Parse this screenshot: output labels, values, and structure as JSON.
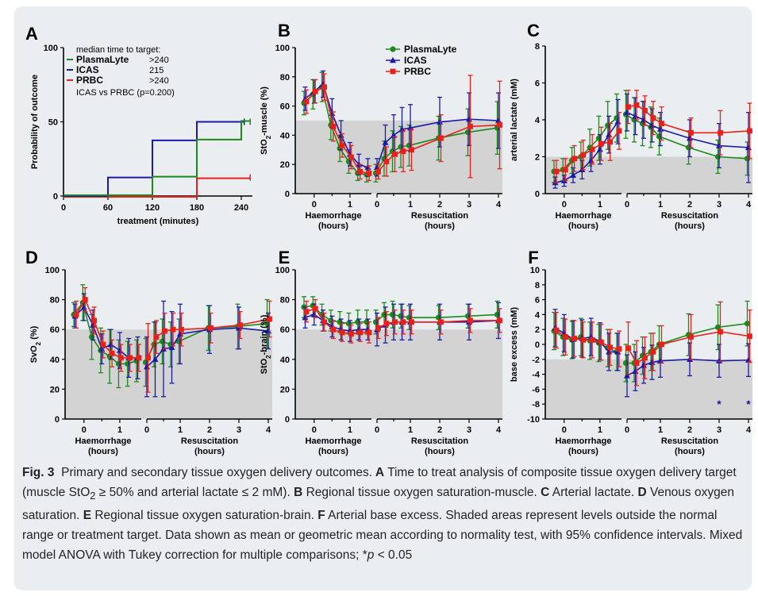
{
  "colors": {
    "PlasmaLyte": "#1a8a1a",
    "ICAS": "#1a1aaa",
    "PRBC": "#e8201c",
    "shade": "#d3d3d3"
  },
  "caption": {
    "fig_label": "Fig. 3",
    "title": "Primary and secondary tissue oxygen delivery outcomes.",
    "segments": [
      {
        "b": "A",
        "t": " Time to treat analysis of composite tissue oxygen delivery target (muscle StO"
      },
      {
        "sub": "2"
      },
      {
        "t": " ≥ 50% and arterial lactate ≤ 2 mM). "
      },
      {
        "b": "B",
        "t": " Regional tissue oxygen saturation-muscle. "
      },
      {
        "b": "C",
        "t": " Arterial lactate. "
      },
      {
        "b": "D",
        "t": " Venous oxygen saturation. "
      },
      {
        "b": "E",
        "t": " Regional tissue oxygen saturation-brain. "
      },
      {
        "b": "F",
        "t": " Arterial base excess. Shaded areas represent levels outside the normal range or treatment target. Data shown as mean or geometric mean according to normality test, with 95% confidence intervals. Mixed model ANOVA with Tukey correction for multiple comparisons; *"
      },
      {
        "i": "p"
      },
      {
        "t": " < 0.05"
      }
    ]
  },
  "chart_data": [
    {
      "panel": "A",
      "type": "line",
      "step": true,
      "xlabel": "treatment (minutes)",
      "ylabel": "Probability of outcome",
      "xlim": [
        0,
        255
      ],
      "ylim": [
        0,
        100
      ],
      "xticks": [
        0,
        60,
        120,
        180,
        240
      ],
      "yticks": [
        0,
        50,
        100
      ],
      "legend_title": "median time to target:",
      "legend_placement": "top-left",
      "series": [
        {
          "name": "PlasmaLyte",
          "median": ">240",
          "steps": [
            [
              0,
              0
            ],
            [
              120,
              0
            ],
            [
              120,
              12.5
            ],
            [
              180,
              12.5
            ],
            [
              180,
              37.5
            ],
            [
              240,
              37.5
            ],
            [
              240,
              50
            ],
            [
              252,
              50
            ]
          ]
        },
        {
          "name": "ICAS",
          "median": "215",
          "steps": [
            [
              0,
              0
            ],
            [
              60,
              0
            ],
            [
              60,
              12.5
            ],
            [
              120,
              12.5
            ],
            [
              120,
              37.5
            ],
            [
              180,
              37.5
            ],
            [
              180,
              50
            ],
            [
              244,
              50
            ]
          ]
        },
        {
          "name": "PRBC",
          "median": ">240",
          "steps": [
            [
              0,
              0
            ],
            [
              120,
              0
            ],
            [
              120,
              0
            ],
            [
              180,
              0
            ],
            [
              180,
              12.5
            ],
            [
              252,
              12.5
            ]
          ]
        }
      ],
      "note": "ICAS vs PRBC (p=0.200)"
    },
    {
      "panel": "B",
      "type": "line",
      "ylabel": "StO2-muscle (%)",
      "ylim": [
        0,
        100
      ],
      "yticks": [
        0,
        20,
        40,
        60,
        80,
        100
      ],
      "shade_below": 50,
      "legend_placement": "top",
      "haem_x": [
        -0.25,
        0,
        0.25,
        0.5,
        0.75,
        1,
        1.25,
        1.5
      ],
      "resus_x": [
        0,
        0.25,
        0.5,
        0.75,
        1,
        2,
        3,
        4
      ],
      "series": [
        {
          "name": "PlasmaLyte",
          "haem": [
            62,
            68,
            73,
            47,
            31,
            22,
            14,
            13
          ],
          "resus": [
            14,
            24,
            29,
            32,
            33,
            38,
            42,
            45
          ],
          "ci_haem": [
            8,
            10,
            10,
            10,
            9,
            8,
            5,
            5
          ],
          "ci_resus": [
            6,
            12,
            14,
            14,
            14,
            15,
            16,
            18
          ]
        },
        {
          "name": "ICAS",
          "haem": [
            65,
            70,
            75,
            55,
            40,
            27,
            20,
            18
          ],
          "resus": [
            18,
            35,
            40,
            44,
            45,
            49,
            51,
            50
          ],
          "ci_haem": [
            8,
            8,
            9,
            10,
            10,
            8,
            7,
            6
          ],
          "ci_resus": [
            6,
            12,
            14,
            15,
            16,
            17,
            18,
            19
          ]
        },
        {
          "name": "PRBC",
          "haem": [
            63,
            70,
            73,
            46,
            33,
            25,
            15,
            14
          ],
          "resus": [
            15,
            22,
            27,
            29,
            30,
            38,
            46,
            47
          ],
          "ci_haem": [
            8,
            8,
            9,
            10,
            8,
            8,
            5,
            5
          ],
          "ci_resus": [
            5,
            10,
            12,
            14,
            14,
            16,
            35,
            30
          ]
        }
      ],
      "xaxis_groups": [
        {
          "label": "Haemorrhage",
          "sub": "(hours)",
          "ticks": [
            "0",
            "1"
          ]
        },
        {
          "label": "Resuscitation",
          "sub": "(hours)",
          "ticks": [
            "0",
            "1",
            "2",
            "3",
            "4"
          ]
        }
      ]
    },
    {
      "panel": "C",
      "type": "line",
      "ylabel": "arterial lactate (mM)",
      "ylim": [
        0,
        8
      ],
      "yticks": [
        0,
        2,
        4,
        6,
        8
      ],
      "shade_below": 2,
      "haem_x": [
        -0.25,
        0,
        0.25,
        0.5,
        0.75,
        1,
        1.25,
        1.5
      ],
      "resus_x": [
        0,
        0.25,
        0.5,
        0.75,
        1,
        2,
        3,
        4
      ],
      "series": [
        {
          "name": "PlasmaLyte",
          "haem": [
            1.2,
            1.3,
            1.8,
            2.0,
            2.5,
            3.0,
            3.7,
            4.1
          ],
          "resus": [
            4.3,
            4.0,
            3.8,
            3.6,
            3.1,
            2.5,
            2.0,
            1.9
          ],
          "ci_haem": [
            0.6,
            0.6,
            0.7,
            0.8,
            1.0,
            1.2,
            1.3,
            1.3
          ],
          "ci_resus": [
            1.3,
            1.2,
            1.2,
            1.1,
            1.0,
            0.9,
            0.9,
            0.9
          ]
        },
        {
          "name": "ICAS",
          "haem": [
            0.6,
            0.7,
            1.0,
            1.3,
            1.8,
            2.4,
            3.2,
            3.9
          ],
          "resus": [
            4.4,
            4.2,
            4.0,
            3.7,
            3.5,
            3.0,
            2.6,
            2.5
          ],
          "ci_haem": [
            0.3,
            0.3,
            0.4,
            0.5,
            0.6,
            0.8,
            1.0,
            1.2
          ],
          "ci_resus": [
            1.0,
            1.0,
            1.0,
            0.9,
            0.9,
            1.0,
            1.2,
            1.9
          ]
        },
        {
          "name": "PRBC",
          "haem": [
            1.2,
            1.3,
            1.9,
            2.1,
            2.4,
            2.7,
            2.8,
            3.4
          ],
          "resus": [
            4.7,
            4.8,
            4.5,
            4.1,
            3.8,
            3.3,
            3.3,
            3.4
          ],
          "ci_haem": [
            0.6,
            0.6,
            0.7,
            0.8,
            0.8,
            0.9,
            1.0,
            1.0
          ],
          "ci_resus": [
            0.9,
            0.8,
            0.8,
            0.9,
            0.9,
            0.8,
            1.2,
            1.5
          ]
        }
      ],
      "xaxis_groups": [
        {
          "label": "Haemorrhage",
          "sub": "(hours)",
          "ticks": [
            "0",
            "1"
          ]
        },
        {
          "label": "Resuscitation",
          "sub": "(hours)",
          "ticks": [
            "0",
            "1",
            "2",
            "3",
            "4"
          ]
        }
      ]
    },
    {
      "panel": "D",
      "type": "line",
      "ylabel": "SvO2 (%)",
      "ylim": [
        0,
        100
      ],
      "yticks": [
        0,
        20,
        40,
        60,
        80,
        100
      ],
      "shade_below": 60,
      "haem_x": [
        -0.25,
        0,
        0.25,
        0.5,
        0.75,
        1,
        1.25,
        1.5
      ],
      "resus_x": [
        0,
        0.25,
        0.5,
        0.75,
        1,
        2,
        3,
        4
      ],
      "series": [
        {
          "name": "PlasmaLyte",
          "haem": [
            70,
            78,
            55,
            46,
            42,
            37,
            37,
            39
          ],
          "resus": [
            38,
            50,
            52,
            50,
            52,
            61,
            62,
            64
          ],
          "ci_haem": [
            8,
            12,
            15,
            15,
            18,
            16,
            15,
            14
          ],
          "ci_resus": [
            16,
            15,
            15,
            15,
            15,
            15,
            15,
            16
          ]
        },
        {
          "name": "ICAS",
          "haem": [
            69,
            75,
            63,
            47,
            50,
            46,
            41,
            41
          ],
          "resus": [
            35,
            40,
            47,
            48,
            57,
            60,
            61,
            59
          ],
          "ci_haem": [
            8,
            9,
            10,
            10,
            10,
            12,
            13,
            14
          ],
          "ci_resus": [
            20,
            25,
            32,
            24,
            20,
            16,
            14,
            12
          ]
        },
        {
          "name": "PRBC",
          "haem": [
            70,
            80,
            66,
            50,
            44,
            41,
            41,
            41
          ],
          "resus": [
            41,
            55,
            59,
            60,
            60,
            61,
            63,
            67
          ],
          "ci_haem": [
            9,
            8,
            9,
            9,
            9,
            9,
            9,
            9
          ],
          "ci_resus": [
            23,
            11,
            12,
            11,
            11,
            10,
            9,
            12
          ]
        }
      ],
      "xaxis_groups": [
        {
          "label": "Haemorrhage",
          "sub": "(hours)",
          "ticks": [
            "0",
            "1"
          ]
        },
        {
          "label": "Resuscitation",
          "sub": "(hours)",
          "ticks": [
            "0",
            "1",
            "2",
            "3",
            "4"
          ]
        }
      ]
    },
    {
      "panel": "E",
      "type": "line",
      "ylabel": "StO2-brain (%)",
      "ylim": [
        0,
        100
      ],
      "yticks": [
        0,
        20,
        40,
        60,
        80,
        100
      ],
      "shade_below": 60,
      "haem_x": [
        -0.25,
        0,
        0.25,
        0.5,
        0.75,
        1,
        1.25,
        1.5
      ],
      "resus_x": [
        0,
        0.25,
        0.5,
        0.75,
        1,
        2,
        3,
        4
      ],
      "series": [
        {
          "name": "PlasmaLyte",
          "haem": [
            75,
            76,
            70,
            66,
            65,
            64,
            65,
            65
          ],
          "resus": [
            65,
            70,
            70,
            69,
            68,
            68,
            69,
            70
          ],
          "ci_haem": [
            7,
            6,
            7,
            7,
            7,
            7,
            8,
            8
          ],
          "ci_resus": [
            8,
            8,
            9,
            8,
            8,
            8,
            8,
            9
          ]
        },
        {
          "name": "ICAS",
          "haem": [
            68,
            70,
            66,
            62,
            60,
            59,
            60,
            60
          ],
          "resus": [
            60,
            63,
            65,
            65,
            65,
            65,
            65,
            66
          ],
          "ci_haem": [
            7,
            7,
            7,
            7,
            7,
            7,
            7,
            7
          ],
          "ci_resus": [
            11,
            12,
            12,
            12,
            12,
            12,
            12,
            12
          ]
        },
        {
          "name": "PRBC",
          "haem": [
            72,
            74,
            65,
            60,
            58,
            57,
            58,
            58
          ],
          "resus": [
            61,
            64,
            65,
            65,
            65,
            65,
            66,
            66
          ],
          "ci_haem": [
            7,
            6,
            6,
            6,
            6,
            6,
            6,
            7
          ],
          "ci_resus": [
            7,
            8,
            8,
            8,
            8,
            8,
            8,
            8
          ]
        }
      ],
      "xaxis_groups": [
        {
          "label": "Haemorrhage",
          "sub": "(hours)",
          "ticks": [
            "0",
            "1"
          ]
        },
        {
          "label": "Resuscitation",
          "sub": "(hours)",
          "ticks": [
            "0",
            "1",
            "2",
            "3",
            "4"
          ]
        }
      ]
    },
    {
      "panel": "F",
      "type": "line",
      "ylabel": "base excess (mM)",
      "ylim": [
        -10,
        10
      ],
      "yticks": [
        -10,
        -8,
        -6,
        -4,
        -2,
        0,
        2,
        4,
        6,
        8,
        10
      ],
      "shade_below": -2,
      "haem_x": [
        -0.25,
        0,
        0.25,
        0.5,
        0.75,
        1,
        1.25,
        1.5
      ],
      "resus_x": [
        0,
        0.25,
        0.5,
        0.75,
        1,
        2,
        3,
        4
      ],
      "annotations": [
        {
          "x": 3,
          "text": "*"
        },
        {
          "x": 4,
          "text": "*"
        }
      ],
      "series": [
        {
          "name": "PlasmaLyte",
          "haem": [
            1.8,
            1.0,
            0.6,
            1.0,
            0.5,
            0.2,
            -0.5,
            -1.0
          ],
          "resus": [
            -2.5,
            -2.5,
            -1.5,
            -1.0,
            0.0,
            1.3,
            2.3,
            2.8
          ],
          "ci_haem": [
            2.5,
            2.5,
            2.5,
            2.5,
            2.5,
            2.5,
            2.5,
            2.5
          ],
          "ci_resus": [
            2.5,
            2.5,
            2.5,
            2.5,
            2.5,
            2.8,
            3.0,
            3.0
          ]
        },
        {
          "name": "ICAS",
          "haem": [
            2.2,
            1.5,
            0.7,
            0.8,
            1.0,
            0.4,
            -1.0,
            -1.0
          ],
          "resus": [
            -4.2,
            -3.6,
            -2.8,
            -2.4,
            -2.2,
            -2.0,
            -2.2,
            -2.1
          ],
          "ci_haem": [
            2.5,
            2.5,
            2.5,
            2.5,
            2.5,
            2.5,
            2.5,
            2.5
          ],
          "ci_resus": [
            2.8,
            2.6,
            2.4,
            2.3,
            2.2,
            2.2,
            2.2,
            2.2
          ]
        },
        {
          "name": "PRBC",
          "haem": [
            1.9,
            1.0,
            0.8,
            0.6,
            0.6,
            0.3,
            -0.4,
            -0.6
          ],
          "resus": [
            -0.5,
            -2.5,
            -1.8,
            -1.0,
            0.0,
            1.0,
            1.7,
            1.1
          ],
          "ci_haem": [
            2.4,
            2.4,
            2.4,
            2.4,
            2.4,
            2.4,
            2.4,
            2.4
          ],
          "ci_resus": [
            3.5,
            3.0,
            2.8,
            2.5,
            2.5,
            3.0,
            4.0,
            3.5
          ]
        }
      ],
      "xaxis_groups": [
        {
          "label": "Haemorrhage",
          "sub": "(hours)",
          "ticks": [
            "0",
            "1"
          ]
        },
        {
          "label": "Resuscitation",
          "sub": "(hours)",
          "ticks": [
            "0",
            "1",
            "2",
            "3",
            "4"
          ]
        }
      ]
    }
  ]
}
